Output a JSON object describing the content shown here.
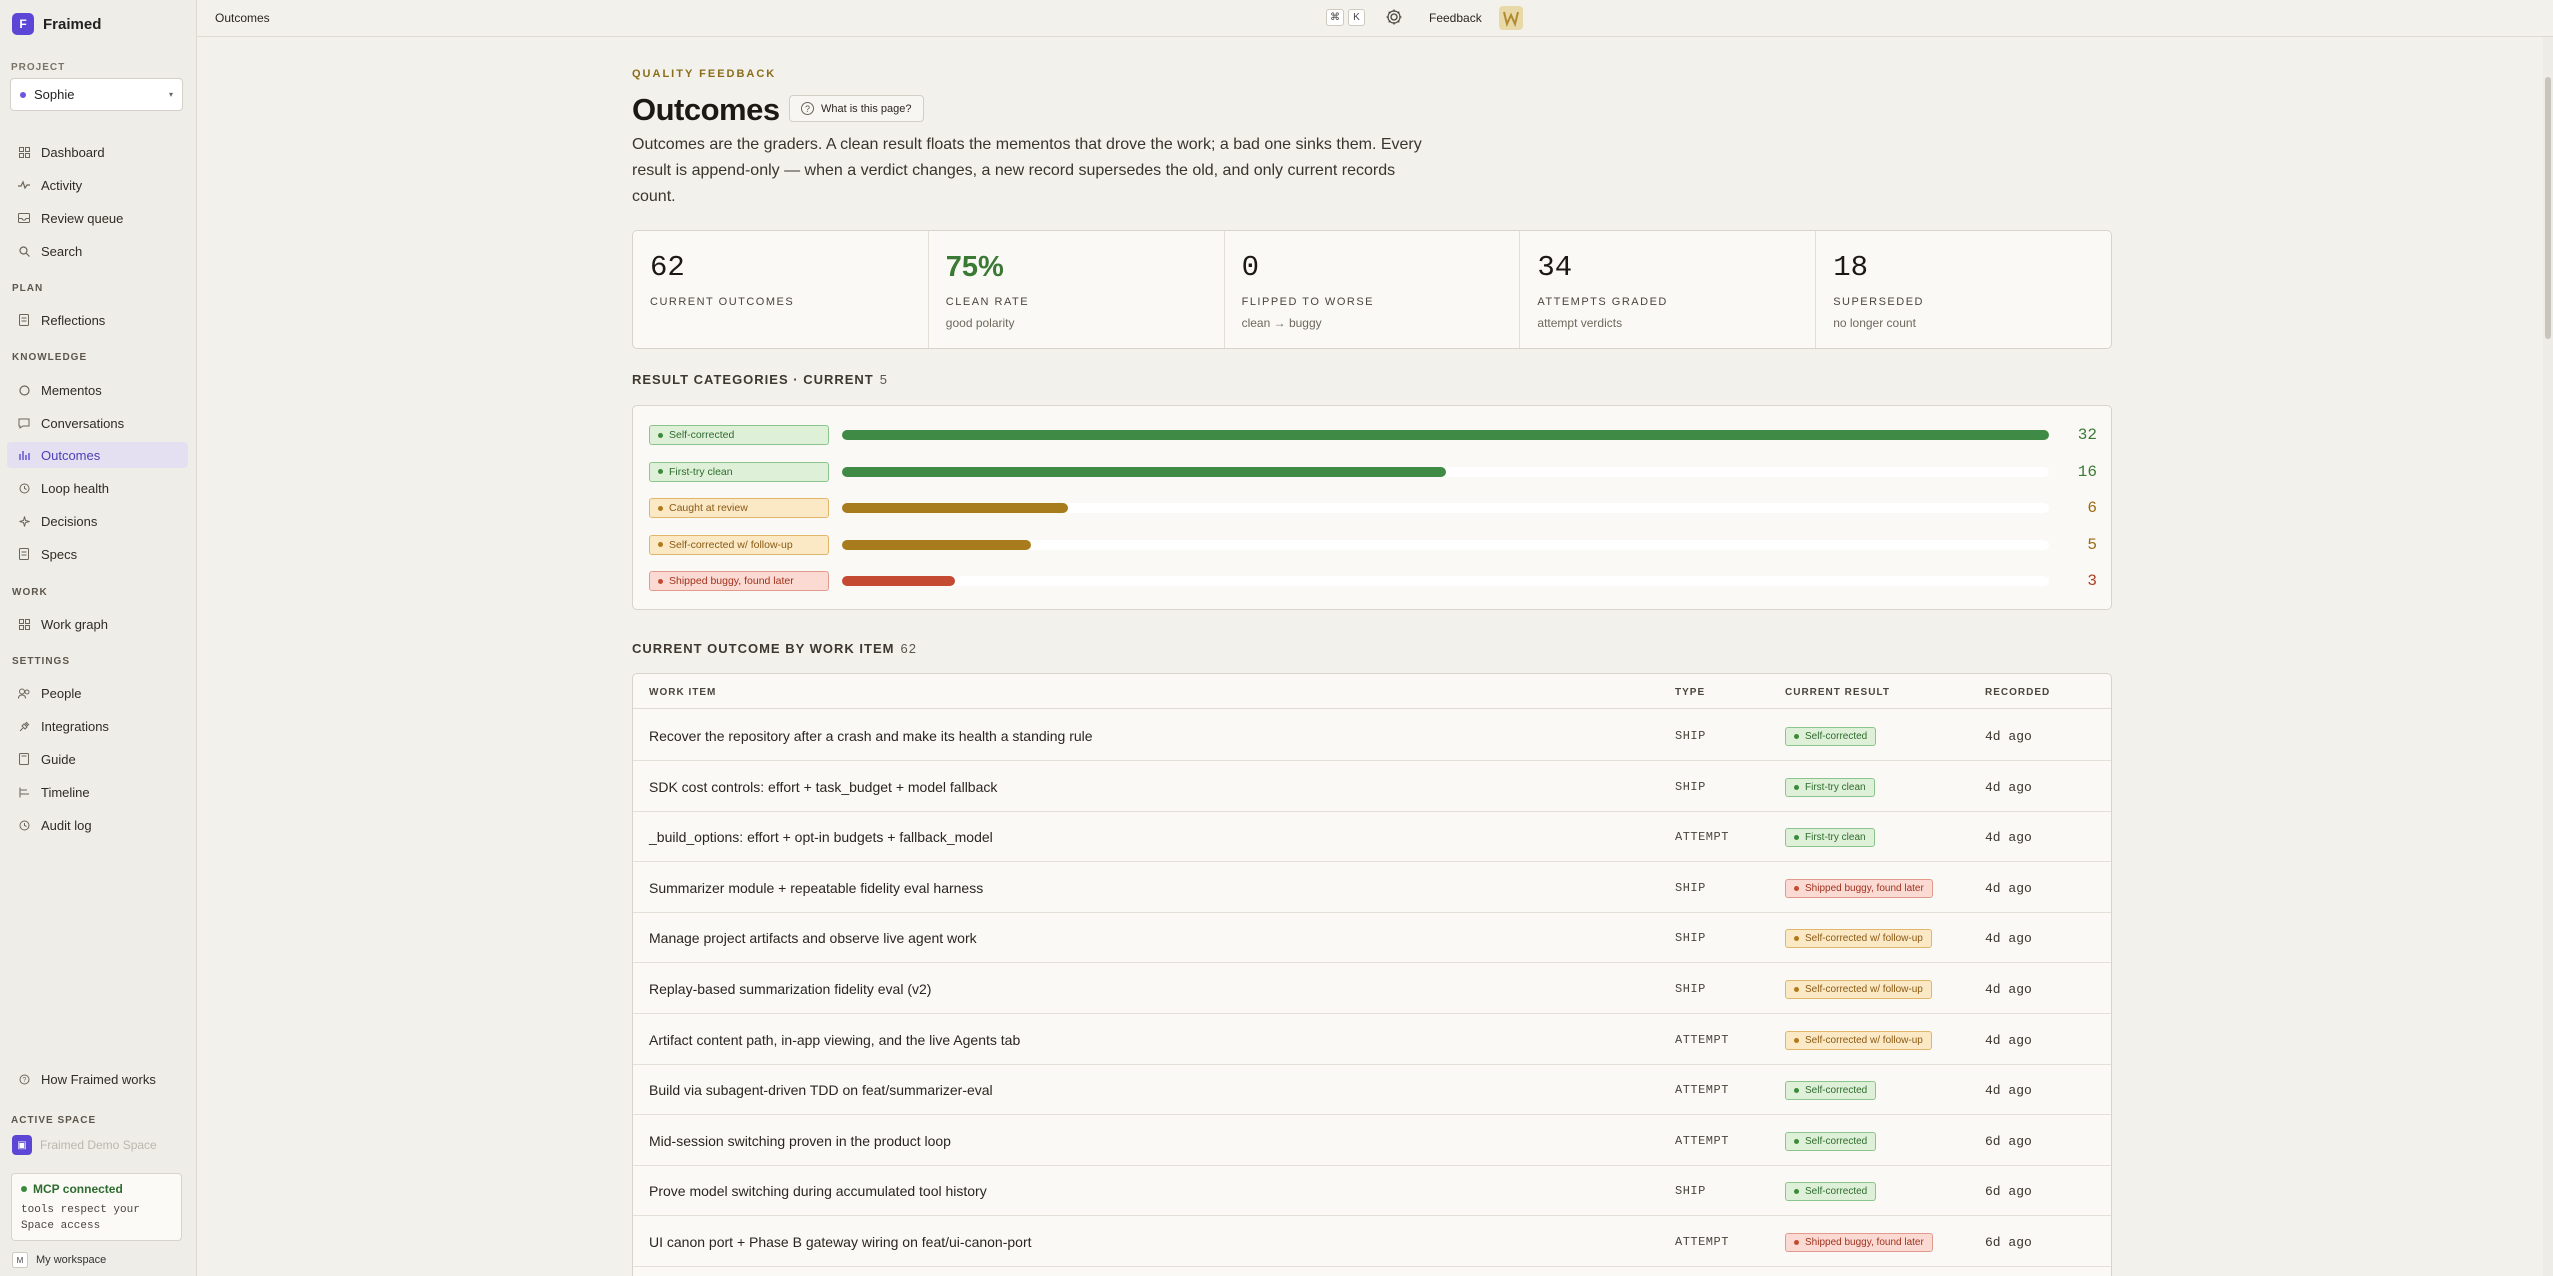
{
  "app": {
    "name": "Fraimed",
    "logo_letter": "F"
  },
  "sidebar": {
    "project_label": "PROJECT",
    "project_value": "Sophie",
    "top_items": [
      {
        "label": "Dashboard",
        "icon": "grid-icon"
      },
      {
        "label": "Activity",
        "icon": "pulse-icon"
      },
      {
        "label": "Review queue",
        "icon": "inbox-icon"
      },
      {
        "label": "Search",
        "icon": "search-icon"
      }
    ],
    "sections": [
      {
        "title": "PLAN",
        "items": [
          {
            "label": "Reflections",
            "icon": "doc-icon"
          }
        ]
      },
      {
        "title": "KNOWLEDGE",
        "items": [
          {
            "label": "Mementos",
            "icon": "circle-icon"
          },
          {
            "label": "Conversations",
            "icon": "chat-icon"
          },
          {
            "label": "Outcomes",
            "icon": "bar-chart-icon",
            "active": true
          },
          {
            "label": "Loop health",
            "icon": "clock-icon"
          },
          {
            "label": "Decisions",
            "icon": "sparkle-icon"
          },
          {
            "label": "Specs",
            "icon": "doc-icon"
          }
        ]
      },
      {
        "title": "WORK",
        "items": [
          {
            "label": "Work graph",
            "icon": "grid-icon"
          }
        ]
      },
      {
        "title": "SETTINGS",
        "items": [
          {
            "label": "People",
            "icon": "people-icon"
          },
          {
            "label": "Integrations",
            "icon": "plug-icon"
          },
          {
            "label": "Guide",
            "icon": "book-icon"
          },
          {
            "label": "Timeline",
            "icon": "timeline-icon"
          },
          {
            "label": "Audit log",
            "icon": "clock-icon"
          }
        ]
      }
    ],
    "how_works": "How Fraimed works",
    "active_space_label": "ACTIVE SPACE",
    "space_name": "Fraimed Demo Space",
    "mcp_title": "MCP connected",
    "mcp_desc": "tools respect your Space access",
    "workspace": "My workspace",
    "workspace_letter": "M"
  },
  "topbar": {
    "title": "Outcomes",
    "kbd_cmd": "⌘",
    "kbd_k": "K",
    "feedback": "Feedback"
  },
  "page": {
    "eyebrow": "QUALITY FEEDBACK",
    "title": "Outcomes",
    "help_button": "What is this page?",
    "intro": "Outcomes are the graders. A clean result floats the mementos that drove the work; a bad one sinks them. Every result is append-only — when a verdict changes, a new record supersedes the old, and only current records count."
  },
  "stats": [
    {
      "value": "62",
      "label": "CURRENT OUTCOMES",
      "sub": ""
    },
    {
      "value": "75%",
      "label": "CLEAN RATE",
      "sub": "good polarity",
      "accent": "green"
    },
    {
      "value": "0",
      "label": "FLIPPED TO WORSE",
      "sub": "clean → buggy"
    },
    {
      "value": "34",
      "label": "ATTEMPTS GRADED",
      "sub": "attempt verdicts"
    },
    {
      "value": "18",
      "label": "SUPERSEDED",
      "sub": "no longer count"
    }
  ],
  "categories_section": {
    "title": "RESULT CATEGORIES · CURRENT",
    "count": "5"
  },
  "chart_data": {
    "type": "bar",
    "categories": [
      "Self-corrected",
      "First-try clean",
      "Caught at review",
      "Self-corrected w/ follow-up",
      "Shipped buggy, found later"
    ],
    "values": [
      32,
      16,
      6,
      5,
      3
    ],
    "tones": [
      "green",
      "green",
      "amber",
      "amber",
      "red"
    ],
    "colors": {
      "green": "#3f8a44",
      "amber": "#a87c1c",
      "red": "#c44a32"
    },
    "count_colors": {
      "green": "#3a7a34",
      "amber": "#9a6a14",
      "red": "#b03a22"
    },
    "xlim": [
      0,
      32
    ]
  },
  "table_section": {
    "title": "CURRENT OUTCOME BY WORK ITEM",
    "count": "62"
  },
  "table": {
    "headers": {
      "work_item": "WORK ITEM",
      "type": "TYPE",
      "result": "CURRENT RESULT",
      "recorded": "RECORDED"
    },
    "rows": [
      {
        "title": "Recover the repository after a crash and make its health a standing rule",
        "type": "SHIP",
        "result": "Self-corrected",
        "tone": "green",
        "recorded": "4d ago"
      },
      {
        "title": "SDK cost controls: effort + task_budget + model fallback",
        "type": "SHIP",
        "result": "First-try clean",
        "tone": "green",
        "recorded": "4d ago"
      },
      {
        "title": "_build_options: effort + opt-in budgets + fallback_model",
        "type": "ATTEMPT",
        "result": "First-try clean",
        "tone": "green",
        "recorded": "4d ago"
      },
      {
        "title": "Summarizer module + repeatable fidelity eval harness",
        "type": "SHIP",
        "result": "Shipped buggy, found later",
        "tone": "red",
        "recorded": "4d ago"
      },
      {
        "title": "Manage project artifacts and observe live agent work",
        "type": "SHIP",
        "result": "Self-corrected w/ follow-up",
        "tone": "amber",
        "recorded": "4d ago"
      },
      {
        "title": "Replay-based summarization fidelity eval (v2)",
        "type": "SHIP",
        "result": "Self-corrected w/ follow-up",
        "tone": "amber",
        "recorded": "4d ago"
      },
      {
        "title": "Artifact content path, in-app viewing, and the live Agents tab",
        "type": "ATTEMPT",
        "result": "Self-corrected w/ follow-up",
        "tone": "amber",
        "recorded": "4d ago"
      },
      {
        "title": "Build via subagent-driven TDD on feat/summarizer-eval",
        "type": "ATTEMPT",
        "result": "Self-corrected",
        "tone": "green",
        "recorded": "4d ago"
      },
      {
        "title": "Mid-session switching proven in the product loop",
        "type": "ATTEMPT",
        "result": "Self-corrected",
        "tone": "green",
        "recorded": "6d ago"
      },
      {
        "title": "Prove model switching during accumulated tool history",
        "type": "SHIP",
        "result": "Self-corrected",
        "tone": "green",
        "recorded": "6d ago"
      },
      {
        "title": "UI canon port + Phase B gateway wiring on feat/ui-canon-port",
        "type": "ATTEMPT",
        "result": "Shipped buggy, found later",
        "tone": "red",
        "recorded": "6d ago"
      },
      {
        "title": "",
        "type": "",
        "result": "",
        "tone": "",
        "recorded": ""
      }
    ]
  }
}
